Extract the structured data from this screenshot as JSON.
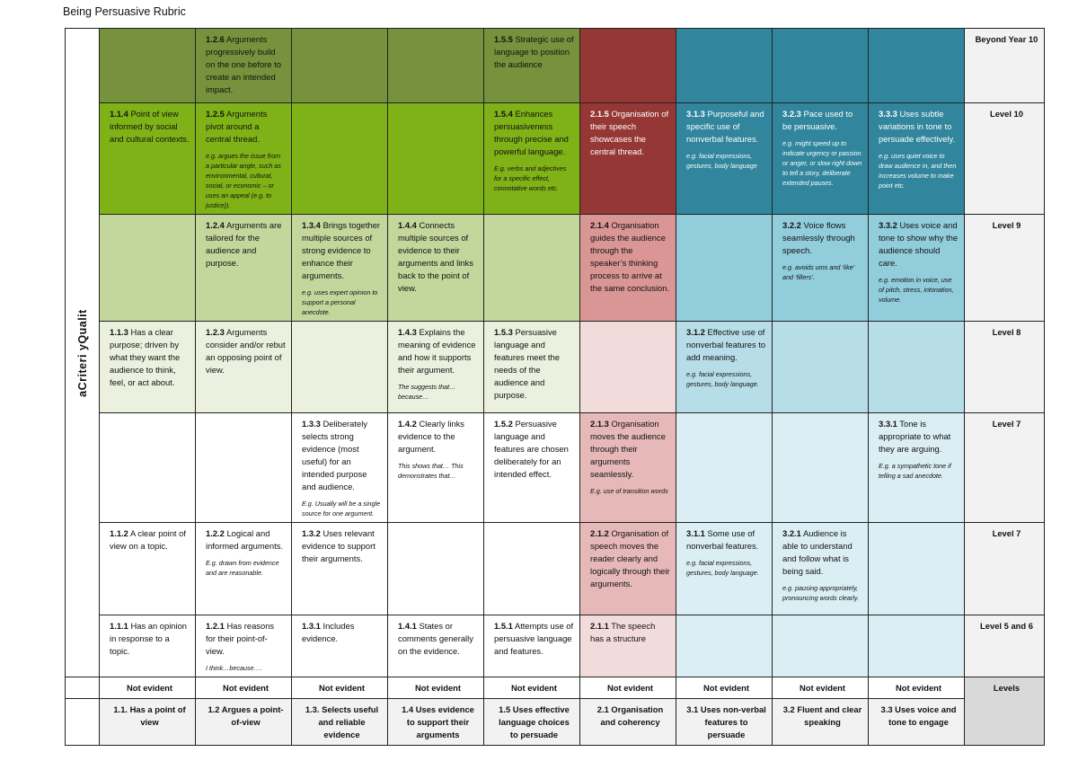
{
  "document": {
    "title": "Being Persuasive Rubric"
  },
  "criteria_label": "aCriteri yQualit",
  "levels": [
    "Beyond Year 10",
    "Level 10",
    "Level 9",
    "Level 8",
    "Level 7",
    "Level 7",
    "Level 5 and 6"
  ],
  "not_evident_label": "Not evident",
  "levels_label": "Levels",
  "criteria_headers": [
    "1.1. Has a point of view",
    "1.2 Argues a point-of-view",
    "1.3. Selects useful and reliable evidence",
    "1.4 Uses evidence to support their arguments",
    "1.5 Uses effective language choices to persuade",
    "2.1 Organisation and coherency",
    "3.1 Uses non-verbal features to persuade",
    "3.2 Fluent and clear speaking",
    "3.3 Uses voice and tone to engage"
  ],
  "colors": {
    "green": [
      "#76923c",
      "#7fb217",
      "#c3d69b",
      "#ebf1de"
    ],
    "red": [
      "#953735",
      "#953735",
      "#da9694",
      "#f2dcdb",
      "#e6b9b8",
      "#e6b9b8",
      "#f2dcdb"
    ],
    "blue": [
      "#31859c",
      "#31859c",
      "#92cddc",
      "#b7dee8",
      "#dbeef4",
      "#dbeef4",
      "#dbeef4"
    ]
  },
  "rows": [
    [
      null,
      {
        "code": "1.2.6",
        "text": " Arguments progressively build on the one before to create an intended impact."
      },
      null,
      null,
      {
        "code": "1.5.5",
        "text": " Strategic use of language to position the audience"
      },
      null,
      null,
      null,
      null
    ],
    [
      {
        "code": "1.1.4",
        "text": " Point of view informed by social and cultural contexts."
      },
      {
        "code": "1.2.5",
        "text": " Arguments pivot around a central thread.",
        "example": "e.g. argues the issue from a particular angle, such as environmental, cultural, social, or economic – or uses an appeal (e.g. to justice))."
      },
      null,
      null,
      {
        "code": "1.5.4",
        "text": " Enhances persuasiveness through precise and powerful language.",
        "example": "E.g. verbs and adjectives for a specific effect, connotative words etc."
      },
      {
        "code": "2.1.5",
        "text": " Organisation of their speech showcases the central thread."
      },
      {
        "code": "3.1.3",
        "text": " Purposeful and specific use of nonverbal features.",
        "example": "e.g. facial expressions, gestures, body language"
      },
      {
        "code": "3.2.3",
        "text": " Pace used to be persuasive.",
        "example": "e.g. might speed up to indicate urgency or passion or anger, or slow right down to tell a story, deliberate extended pauses."
      },
      {
        "code": "3.3.3",
        "text": " Uses subtle variations in tone to persuade effectively.",
        "example": "e.g. uses quiet voice to draw audience in, and then increases volume to make point etc."
      }
    ],
    [
      null,
      {
        "code": "1.2.4",
        "text": " Arguments are tailored for the audience and purpose."
      },
      {
        "code": "1.3.4",
        "text": " Brings together multiple sources of strong evidence to enhance their arguments.",
        "example": "e.g. uses expert opinion to support a personal anecdote."
      },
      {
        "code": "1.4.4",
        "text": " Connects multiple sources of evidence to their arguments and links back to the point of view."
      },
      null,
      {
        "code": "2.1.4",
        "text": " Organisation guides the audience through the speaker’s thinking process to arrive at the same conclusion."
      },
      null,
      {
        "code": "3.2.2",
        "text": " Voice flows seamlessly through speech.",
        "example": "e.g. avoids ums and ‘like’ and ‘fillers’."
      },
      {
        "code": "3.3.2",
        "text": " Uses voice and tone to show why the audience should care.",
        "example": "e.g. emotion in voice, use of pitch, stress, intonation, volume."
      }
    ],
    [
      {
        "code": "1.1.3",
        "text": " Has a clear purpose; driven by what they want the audience to think, feel, or act about."
      },
      {
        "code": "1.2.3",
        "text": " Arguments consider and/or rebut an opposing point of view."
      },
      null,
      {
        "code": "1.4.3",
        "text": " Explains the meaning of evidence and how it supports their argument.",
        "example": "The suggests that…because…"
      },
      {
        "code": "1.5.3",
        "text": " Persuasive language and features meet the needs of the audience and purpose."
      },
      null,
      {
        "code": "3.1.2",
        "text": " Effective use of nonverbal features to add meaning.",
        "example": "e.g. facial expressions, gestures, body language."
      },
      null,
      null
    ],
    [
      null,
      null,
      {
        "code": "1.3.3",
        "text": " Deliberately selects strong evidence (most useful) for an intended purpose and audience.",
        "example": "E.g. Usually will be a single source for one argument."
      },
      {
        "code": "1.4.2",
        "text": " Clearly links evidence to the argument.",
        "example": "This shows that… This demonstrates that…"
      },
      {
        "code": "1.5.2",
        "text": " Persuasive language and features are chosen deliberately for an intended effect."
      },
      {
        "code": "2.1.3",
        "text": " Organisation moves the audience through their arguments seamlessly.",
        "example": "E.g. use of transition words"
      },
      null,
      null,
      {
        "code": "3.3.1",
        "text": " Tone is appropriate to what they are arguing.",
        "example": "E.g. a sympathetic tone if telling a sad anecdote."
      }
    ],
    [
      {
        "code": "1.1.2",
        "text": " A clear point of view on a topic."
      },
      {
        "code": "1.2.2",
        "text": " Logical and informed arguments.",
        "example": "E.g. drawn from evidence and are reasonable."
      },
      {
        "code": "1.3.2",
        "text": " Uses relevant evidence to support their arguments."
      },
      null,
      null,
      {
        "code": "2.1.2",
        "text": " Organisation of speech moves the reader clearly and logically through their arguments."
      },
      {
        "code": "3.1.1",
        "text": " Some use of nonverbal features.",
        "example": "e.g. facial expressions, gestures, body language."
      },
      {
        "code": "3.2.1",
        "text": " Audience is able to understand and follow what is being said.",
        "example": "e.g. pausing appropriately, pronouncing words clearly."
      },
      null
    ],
    [
      {
        "code": "1.1.1",
        "text": " Has an opinion in response to a topic."
      },
      {
        "code": "1.2.1",
        "text": " Has reasons for their point-of-view.",
        "example": "I think…because…."
      },
      {
        "code": "1.3.1",
        "text": " Includes evidence."
      },
      {
        "code": "1.4.1",
        "text": " States or comments generally on the evidence."
      },
      {
        "code": "1.5.1",
        "text": " Attempts use of persuasive language and features."
      },
      {
        "code": "2.1.1",
        "text": " The speech has a structure"
      },
      null,
      null,
      null
    ]
  ]
}
